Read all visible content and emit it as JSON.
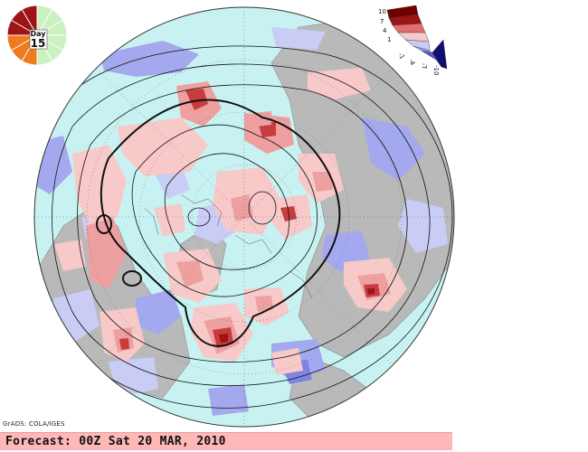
{
  "map": {
    "kind": "polar stereographic forecast map, Northern Hemisphere",
    "colors": {
      "ocean": "#c8f2f2",
      "land": "#b9b9b9",
      "positive": [
        "#f7c9c9",
        "#eea0a0",
        "#e07070",
        "#c73d3d",
        "#9e1414",
        "#6e0000"
      ],
      "negative": [
        "#c9ccf5",
        "#a4a8ef",
        "#7f84e0",
        "#5659c7",
        "#2d2f9e",
        "#0e0f6e"
      ]
    }
  },
  "day_badge": {
    "label": "Day",
    "value": "15"
  },
  "color_scale": {
    "labels": [
      "10",
      "7",
      "4",
      "1",
      "-1",
      "-4",
      "-7",
      "-10"
    ]
  },
  "credit": "GrADS: COLA/IGES",
  "forecast_label": "Forecast: 00Z Sat 20 MAR, 2010"
}
